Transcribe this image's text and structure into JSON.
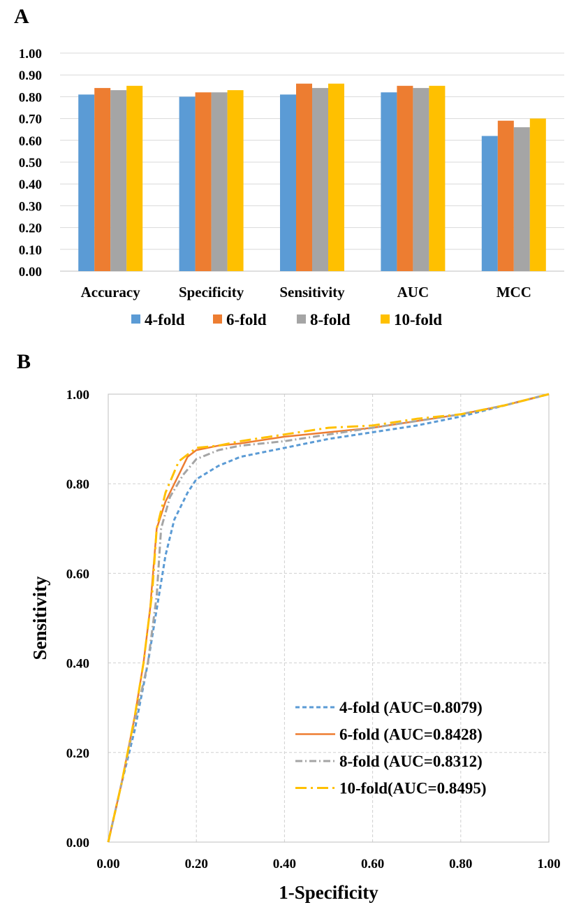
{
  "chart_data": [
    {
      "panel": "A",
      "type": "bar",
      "categories": [
        "Accuracy",
        "Specificity",
        "Sensitivity",
        "AUC",
        "MCC"
      ],
      "series": [
        {
          "name": "4-fold",
          "color": "#5b9bd5",
          "values": [
            0.81,
            0.8,
            0.81,
            0.82,
            0.62
          ]
        },
        {
          "name": "6-fold",
          "color": "#ed7d31",
          "values": [
            0.84,
            0.82,
            0.86,
            0.85,
            0.69
          ]
        },
        {
          "name": "8-fold",
          "color": "#a5a5a5",
          "values": [
            0.83,
            0.82,
            0.84,
            0.84,
            0.66
          ]
        },
        {
          "name": "10-fold",
          "color": "#ffc000",
          "values": [
            0.85,
            0.83,
            0.86,
            0.85,
            0.7
          ]
        }
      ],
      "ylim": [
        0,
        1
      ],
      "yticks": [
        "0.00",
        "0.10",
        "0.20",
        "0.30",
        "0.40",
        "0.50",
        "0.60",
        "0.70",
        "0.80",
        "0.90",
        "1.00"
      ],
      "grid": true,
      "legend_position": "bottom"
    },
    {
      "panel": "B",
      "type": "line",
      "xlabel": "1-Specificity",
      "ylabel": "Sensitivity",
      "xlim": [
        0,
        1
      ],
      "ylim": [
        0,
        1
      ],
      "xticks": [
        "0.00",
        "0.20",
        "0.40",
        "0.60",
        "0.80",
        "1.00"
      ],
      "yticks": [
        "0.00",
        "0.20",
        "0.40",
        "0.60",
        "0.80",
        "1.00"
      ],
      "grid": true,
      "legend_position": "bottom-right",
      "series": [
        {
          "name": "4-fold (AUC=0.8079)",
          "color": "#5b9bd5",
          "dash": "dash",
          "points": [
            [
              0,
              0
            ],
            [
              0.03,
              0.13
            ],
            [
              0.06,
              0.25
            ],
            [
              0.09,
              0.4
            ],
            [
              0.11,
              0.52
            ],
            [
              0.13,
              0.64
            ],
            [
              0.15,
              0.72
            ],
            [
              0.18,
              0.78
            ],
            [
              0.2,
              0.81
            ],
            [
              0.25,
              0.84
            ],
            [
              0.3,
              0.86
            ],
            [
              0.4,
              0.88
            ],
            [
              0.5,
              0.9
            ],
            [
              0.6,
              0.915
            ],
            [
              0.7,
              0.93
            ],
            [
              0.8,
              0.95
            ],
            [
              0.9,
              0.975
            ],
            [
              1,
              1
            ]
          ]
        },
        {
          "name": "6-fold (AUC=0.8428)",
          "color": "#ed7d31",
          "dash": "solid",
          "points": [
            [
              0,
              0
            ],
            [
              0.03,
              0.13
            ],
            [
              0.06,
              0.28
            ],
            [
              0.08,
              0.4
            ],
            [
              0.095,
              0.52
            ],
            [
              0.11,
              0.7
            ],
            [
              0.13,
              0.76
            ],
            [
              0.16,
              0.82
            ],
            [
              0.18,
              0.86
            ],
            [
              0.2,
              0.875
            ],
            [
              0.25,
              0.885
            ],
            [
              0.3,
              0.89
            ],
            [
              0.4,
              0.905
            ],
            [
              0.5,
              0.915
            ],
            [
              0.6,
              0.925
            ],
            [
              0.7,
              0.94
            ],
            [
              0.8,
              0.955
            ],
            [
              0.9,
              0.975
            ],
            [
              1,
              1
            ]
          ]
        },
        {
          "name": "8-fold (AUC=0.8312)",
          "color": "#a5a5a5",
          "dash": "dashdot",
          "points": [
            [
              0,
              0
            ],
            [
              0.03,
              0.13
            ],
            [
              0.06,
              0.27
            ],
            [
              0.09,
              0.4
            ],
            [
              0.11,
              0.55
            ],
            [
              0.12,
              0.7
            ],
            [
              0.14,
              0.77
            ],
            [
              0.17,
              0.82
            ],
            [
              0.2,
              0.855
            ],
            [
              0.25,
              0.875
            ],
            [
              0.3,
              0.885
            ],
            [
              0.4,
              0.895
            ],
            [
              0.5,
              0.91
            ],
            [
              0.6,
              0.925
            ],
            [
              0.7,
              0.94
            ],
            [
              0.8,
              0.955
            ],
            [
              0.9,
              0.975
            ],
            [
              1,
              1
            ]
          ]
        },
        {
          "name": "10-fold(AUC=0.8495)",
          "color": "#ffc000",
          "dash": "longdashdot",
          "points": [
            [
              0,
              0
            ],
            [
              0.03,
              0.13
            ],
            [
              0.06,
              0.28
            ],
            [
              0.08,
              0.4
            ],
            [
              0.1,
              0.56
            ],
            [
              0.11,
              0.7
            ],
            [
              0.13,
              0.78
            ],
            [
              0.16,
              0.85
            ],
            [
              0.2,
              0.88
            ],
            [
              0.25,
              0.885
            ],
            [
              0.3,
              0.895
            ],
            [
              0.4,
              0.91
            ],
            [
              0.5,
              0.925
            ],
            [
              0.6,
              0.93
            ],
            [
              0.7,
              0.945
            ],
            [
              0.8,
              0.955
            ],
            [
              0.9,
              0.975
            ],
            [
              1,
              1
            ]
          ]
        }
      ]
    }
  ],
  "panels": {
    "a_label": "A",
    "b_label": "B"
  }
}
